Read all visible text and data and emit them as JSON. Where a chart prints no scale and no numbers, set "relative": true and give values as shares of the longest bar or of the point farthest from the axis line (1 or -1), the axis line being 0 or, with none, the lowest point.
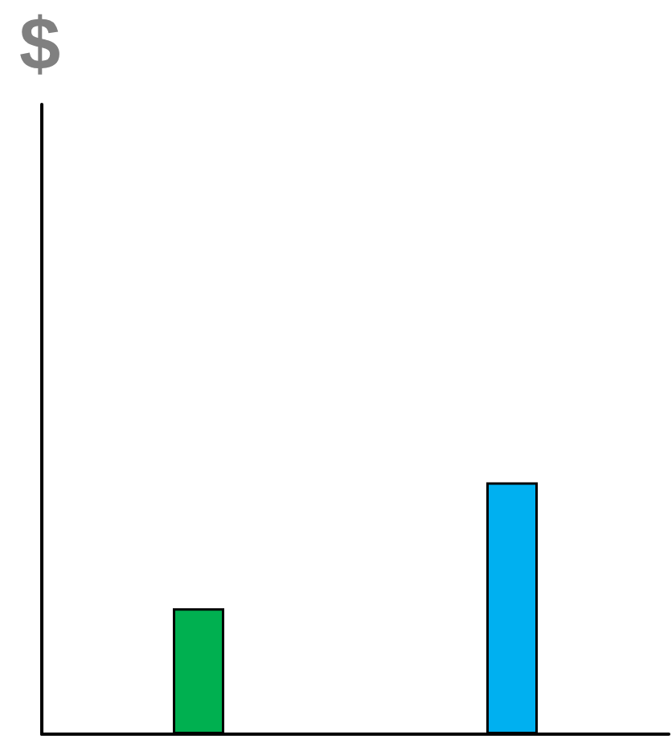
{
  "chart_data": {
    "type": "bar",
    "relative": true,
    "annotations": [
      "$"
    ],
    "categories": [
      null,
      null
    ],
    "values": [
      0.5,
      1
    ],
    "colors": [
      "#00b050",
      "#00b0f0"
    ],
    "grid": false
  }
}
